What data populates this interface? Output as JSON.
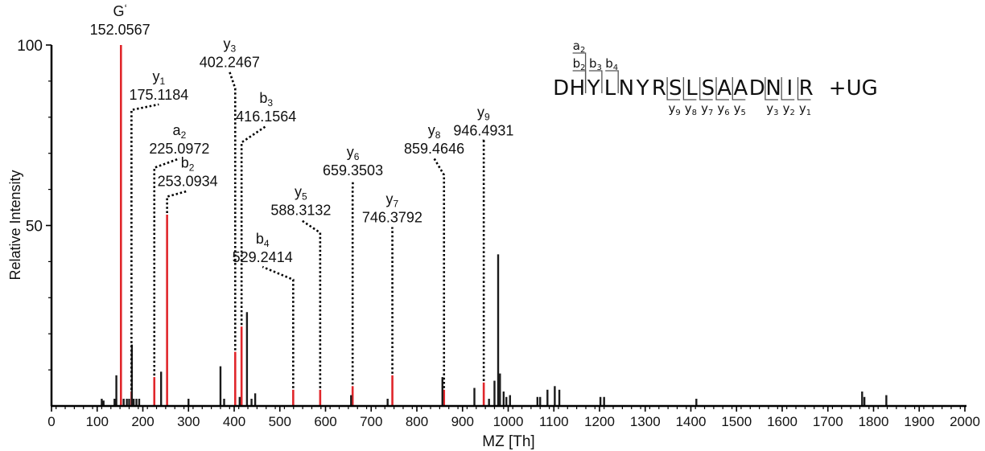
{
  "chart_data": {
    "type": "bar",
    "title": "",
    "xlabel": "MZ [Th]",
    "ylabel": "Relative Intensity",
    "xlim": [
      0,
      2000
    ],
    "ylim": [
      0,
      100
    ],
    "x_ticks": [
      0,
      100,
      200,
      300,
      400,
      500,
      600,
      700,
      800,
      900,
      1000,
      1100,
      1200,
      1300,
      1400,
      1500,
      1600,
      1700,
      1800,
      1900,
      2000
    ],
    "y_ticks": [
      50,
      100
    ],
    "colors": {
      "matched": "#e0262b",
      "unmatched": "#1a1a1a",
      "axis": "#000000"
    },
    "series": [
      {
        "kind": "matched",
        "peaks": [
          {
            "mz": 152.0567,
            "intensity": 100
          },
          {
            "mz": 175.1184,
            "intensity": 4
          },
          {
            "mz": 225.0972,
            "intensity": 8
          },
          {
            "mz": 253.0934,
            "intensity": 53
          },
          {
            "mz": 402.2467,
            "intensity": 15
          },
          {
            "mz": 416.1564,
            "intensity": 22
          },
          {
            "mz": 529.2414,
            "intensity": 4.5
          },
          {
            "mz": 588.3132,
            "intensity": 4.5
          },
          {
            "mz": 659.3503,
            "intensity": 5.5
          },
          {
            "mz": 746.3792,
            "intensity": 8.5
          },
          {
            "mz": 859.4646,
            "intensity": 4.5
          },
          {
            "mz": 946.4931,
            "intensity": 6.5
          }
        ]
      },
      {
        "kind": "unmatched",
        "peaks": [
          {
            "mz": 110,
            "intensity": 2
          },
          {
            "mz": 114,
            "intensity": 1.5
          },
          {
            "mz": 138,
            "intensity": 2
          },
          {
            "mz": 142,
            "intensity": 8.5
          },
          {
            "mz": 158,
            "intensity": 2
          },
          {
            "mz": 165,
            "intensity": 2
          },
          {
            "mz": 170,
            "intensity": 2
          },
          {
            "mz": 176,
            "intensity": 17
          },
          {
            "mz": 180,
            "intensity": 2
          },
          {
            "mz": 186,
            "intensity": 2
          },
          {
            "mz": 192,
            "intensity": 2
          },
          {
            "mz": 240,
            "intensity": 9.5
          },
          {
            "mz": 300,
            "intensity": 2
          },
          {
            "mz": 370,
            "intensity": 11
          },
          {
            "mz": 378,
            "intensity": 2
          },
          {
            "mz": 412,
            "intensity": 2.5
          },
          {
            "mz": 428,
            "intensity": 26
          },
          {
            "mz": 438,
            "intensity": 2
          },
          {
            "mz": 446,
            "intensity": 3.5
          },
          {
            "mz": 656,
            "intensity": 3
          },
          {
            "mz": 736,
            "intensity": 2
          },
          {
            "mz": 856,
            "intensity": 8
          },
          {
            "mz": 926,
            "intensity": 5
          },
          {
            "mz": 958,
            "intensity": 2
          },
          {
            "mz": 970,
            "intensity": 7
          },
          {
            "mz": 978,
            "intensity": 42
          },
          {
            "mz": 982,
            "intensity": 9
          },
          {
            "mz": 990,
            "intensity": 4
          },
          {
            "mz": 996,
            "intensity": 2.5
          },
          {
            "mz": 1004,
            "intensity": 3
          },
          {
            "mz": 1064,
            "intensity": 2.5
          },
          {
            "mz": 1070,
            "intensity": 2.5
          },
          {
            "mz": 1086,
            "intensity": 4.5
          },
          {
            "mz": 1102,
            "intensity": 5.5
          },
          {
            "mz": 1112,
            "intensity": 4.5
          },
          {
            "mz": 1202,
            "intensity": 2.5
          },
          {
            "mz": 1210,
            "intensity": 2.5
          },
          {
            "mz": 1412,
            "intensity": 2
          },
          {
            "mz": 1775,
            "intensity": 4
          },
          {
            "mz": 1780,
            "intensity": 2.5
          },
          {
            "mz": 1828,
            "intensity": 3
          }
        ]
      }
    ],
    "annotations": [
      {
        "ion": "G",
        "sub": "",
        "sup": "‘",
        "mz_label": "152.0567",
        "mz": 152.0567,
        "peak": 100,
        "label_x": 150,
        "label_y": 102
      },
      {
        "ion": "y",
        "sub": "1",
        "sup": "",
        "mz_label": "175.1184",
        "mz": 175.1184,
        "peak": 4,
        "label_x": 235,
        "label_y": 84,
        "knee": 82
      },
      {
        "ion": "a",
        "sub": "2",
        "sup": "",
        "mz_label": "225.0972",
        "mz": 225.0972,
        "peak": 8,
        "label_x": 280,
        "label_y": 69,
        "knee": 66
      },
      {
        "ion": "b",
        "sub": "2",
        "sup": "",
        "mz_label": "253.0934",
        "mz": 253.0934,
        "peak": 53,
        "label_x": 298,
        "label_y": 60,
        "knee": 58
      },
      {
        "ion": "y",
        "sub": "3",
        "sup": "",
        "mz_label": "402.2467",
        "mz": 402.2467,
        "peak": 15,
        "label_x": 390,
        "label_y": 93,
        "knee": 88
      },
      {
        "ion": "b",
        "sub": "3",
        "sup": "",
        "mz_label": "416.1564",
        "mz": 416.1564,
        "peak": 22,
        "label_x": 470,
        "label_y": 78,
        "knee": 73
      },
      {
        "ion": "b",
        "sub": "4",
        "sup": "",
        "mz_label": "529.2414",
        "mz": 529.2414,
        "peak": 4.5,
        "label_x": 462,
        "label_y": 39,
        "knee": 35
      },
      {
        "ion": "y",
        "sub": "5",
        "sup": "",
        "mz_label": "588.3132",
        "mz": 588.3132,
        "peak": 4.5,
        "label_x": 546,
        "label_y": 52,
        "knee": 48
      },
      {
        "ion": "y",
        "sub": "6",
        "sup": "",
        "mz_label": "659.3503",
        "mz": 659.3503,
        "peak": 5.5,
        "label_x": 660,
        "label_y": 63,
        "knee": 60
      },
      {
        "ion": "y",
        "sub": "7",
        "sup": "",
        "mz_label": "746.3792",
        "mz": 746.3792,
        "peak": 8.5,
        "label_x": 746,
        "label_y": 50,
        "knee": 49
      },
      {
        "ion": "y",
        "sub": "8",
        "sup": "",
        "mz_label": "859.4646",
        "mz": 859.4646,
        "peak": 4.5,
        "label_x": 838,
        "label_y": 69,
        "knee": 64
      },
      {
        "ion": "y",
        "sub": "9",
        "sup": "",
        "mz_label": "946.4931",
        "mz": 946.4931,
        "peak": 6.5,
        "label_x": 946,
        "label_y": 74,
        "knee": 74
      }
    ],
    "peptide": {
      "sequence": [
        "D",
        "H",
        "Y",
        "L",
        "N",
        "Y",
        "R",
        "S",
        "L",
        "S",
        "A",
        "A",
        "D",
        "N",
        "I",
        "R"
      ],
      "modification": "+UG",
      "n_term_ions": [
        {
          "ion": "a",
          "sub": "2",
          "after": 2,
          "level": 2
        },
        {
          "ion": "b",
          "sub": "2",
          "after": 2,
          "level": 1
        },
        {
          "ion": "b",
          "sub": "3",
          "after": 3,
          "level": 1
        },
        {
          "ion": "b",
          "sub": "4",
          "after": 4,
          "level": 1
        }
      ],
      "c_term_ions": [
        {
          "ion": "y",
          "sub": "9",
          "after": 7
        },
        {
          "ion": "y",
          "sub": "8",
          "after": 8
        },
        {
          "ion": "y",
          "sub": "7",
          "after": 9
        },
        {
          "ion": "y",
          "sub": "6",
          "after": 10
        },
        {
          "ion": "y",
          "sub": "5",
          "after": 11
        },
        {
          "ion": "y",
          "sub": "3",
          "after": 13
        },
        {
          "ion": "y",
          "sub": "2",
          "after": 14
        },
        {
          "ion": "y",
          "sub": "1",
          "after": 15
        }
      ]
    }
  }
}
